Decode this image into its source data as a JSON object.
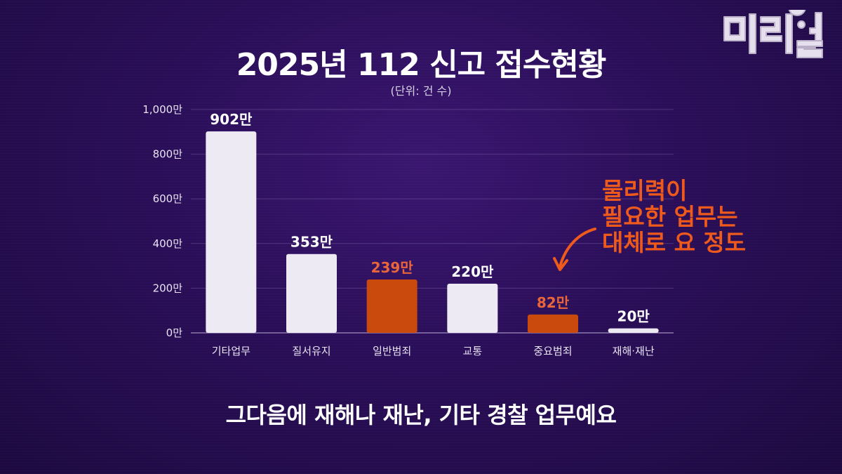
{
  "logo": {
    "text": "미리얼"
  },
  "unit_note": "(단위: 건 수)",
  "annotation": {
    "lines": [
      "물리력이",
      "필요한 업무는",
      "대체로 요 정도"
    ],
    "color": "#ee5a1c"
  },
  "subtitle": "그다음에 재해나 재난, 기타 경찰 업무예요",
  "colors": {
    "normal_bar": "#eeeaf4",
    "highlight_bar": "#c94a0c",
    "highlight_label": "#e8663a"
  },
  "chart_data": {
    "type": "bar",
    "title": "2025년 112 신고 접수현황",
    "xlabel": "",
    "ylabel": "",
    "unit": "만",
    "categories": [
      "기타업무",
      "질서유지",
      "일반범죄",
      "교통",
      "중요범죄",
      "재해·재난"
    ],
    "values": [
      902,
      353,
      239,
      220,
      82,
      20
    ],
    "value_labels": [
      "902만",
      "353만",
      "239만",
      "220만",
      "82만",
      "20만"
    ],
    "highlighted": [
      false,
      false,
      true,
      false,
      true,
      false
    ],
    "ylim": [
      0,
      1000
    ],
    "yticks": [
      0,
      200,
      400,
      600,
      800,
      1000
    ],
    "ytick_labels": [
      "0만",
      "200만",
      "400만",
      "600만",
      "800만",
      "1,000만"
    ],
    "grid": true
  }
}
